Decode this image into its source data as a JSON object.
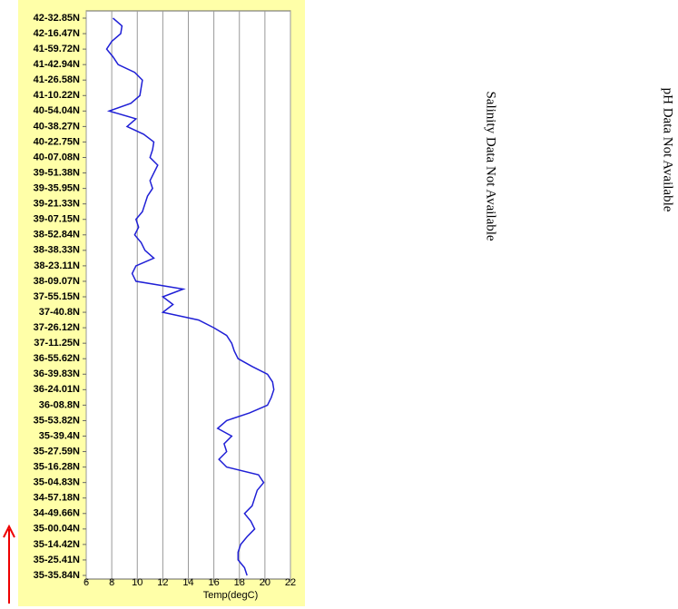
{
  "chart_data": {
    "type": "line",
    "orientation": "vertical",
    "xlabel": "Temp(degC)",
    "xlim": [
      6,
      22
    ],
    "xticks": [
      6,
      8,
      10,
      12,
      14,
      16,
      18,
      20,
      22
    ],
    "grid": true,
    "color": "#1f1fd6",
    "categories": [
      "42-32.85N",
      null,
      "42-16.47N",
      null,
      "41-59.72N",
      null,
      "41-42.94N",
      null,
      "41-26.58N",
      null,
      "41-10.22N",
      null,
      "40-54.04N",
      null,
      "40-38.27N",
      null,
      "40-22.75N",
      null,
      "40-07.08N",
      null,
      "39-51.38N",
      null,
      "39-35.95N",
      null,
      "39-21.33N",
      null,
      "39-07.15N",
      null,
      "38-52.84N",
      null,
      "38-38.33N",
      null,
      "38-23.11N",
      null,
      "38-09.07N",
      null,
      "37-55.15N",
      null,
      "37-40.8N",
      null,
      "37-26.12N",
      null,
      "37-11.25N",
      null,
      "36-55.62N",
      null,
      "36-39.83N",
      null,
      "36-24.01N",
      null,
      "36-08.8N",
      null,
      "35-53.82N",
      null,
      "35-39.4N",
      null,
      "35-27.59N",
      null,
      "35-16.28N",
      null,
      "35-04.83N",
      null,
      "34-57.18N",
      null,
      "34-49.66N",
      null,
      "35-00.04N",
      null,
      "35-14.42N",
      null,
      "35-25.41N",
      null,
      "35-35.84N"
    ],
    "values": [
      8.1,
      8.8,
      8.7,
      8.0,
      7.6,
      8.1,
      8.5,
      9.8,
      10.4,
      10.3,
      10.2,
      9.5,
      7.8,
      9.9,
      9.2,
      10.5,
      11.3,
      11.2,
      11.0,
      11.6,
      11.3,
      11.0,
      11.2,
      10.8,
      10.6,
      10.4,
      9.9,
      10.1,
      9.8,
      10.3,
      10.6,
      11.3,
      9.9,
      9.6,
      9.9,
      13.6,
      12.0,
      12.8,
      12.0,
      14.8,
      16.0,
      17.0,
      17.4,
      17.6,
      17.9,
      19.0,
      20.2,
      20.6,
      20.7,
      20.5,
      20.2,
      18.8,
      17.0,
      16.3,
      17.4,
      16.8,
      17.0,
      16.4,
      17.0,
      19.5,
      19.9,
      19.4,
      19.2,
      19.0,
      18.4,
      18.9,
      19.2,
      18.6,
      18.1,
      17.9,
      17.9,
      18.4,
      18.6
    ],
    "annotations": [
      "Salinity Data Not Available",
      "pH Data Not Available"
    ]
  }
}
